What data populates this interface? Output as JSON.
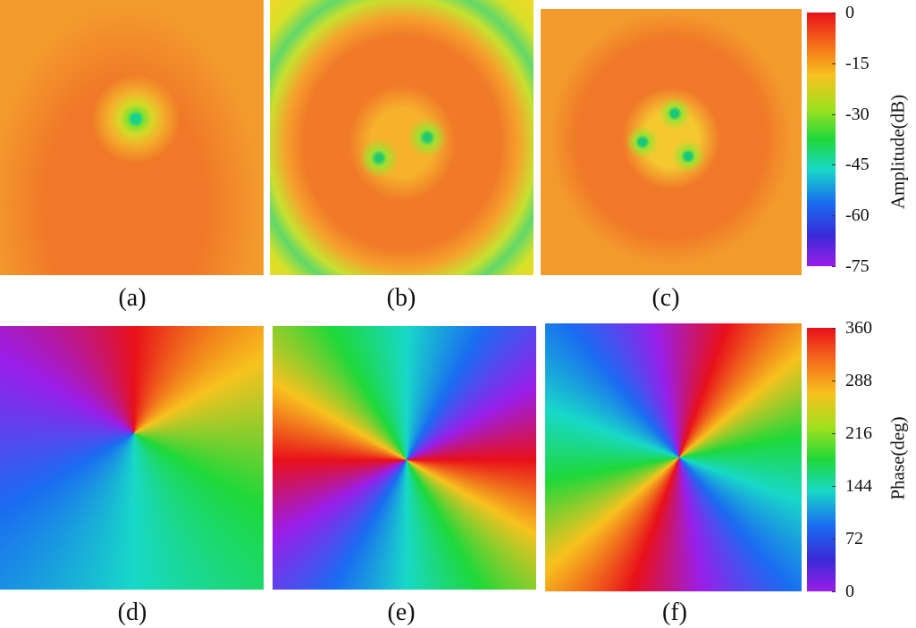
{
  "figure": {
    "panels": [
      {
        "label": "(a)"
      },
      {
        "label": "(b)"
      },
      {
        "label": "(c)"
      },
      {
        "label": "(d)"
      },
      {
        "label": "(e)"
      },
      {
        "label": "(f)"
      }
    ],
    "colorbars": [
      {
        "label": "Amplitude(dB)",
        "lim": [
          -75,
          0
        ],
        "ticks": [
          0,
          -15,
          -30,
          -45,
          -60,
          -75
        ]
      },
      {
        "label": "Phase(deg)",
        "lim": [
          0,
          360
        ],
        "ticks": [
          360,
          288,
          216,
          144,
          72,
          0
        ]
      }
    ]
  }
}
